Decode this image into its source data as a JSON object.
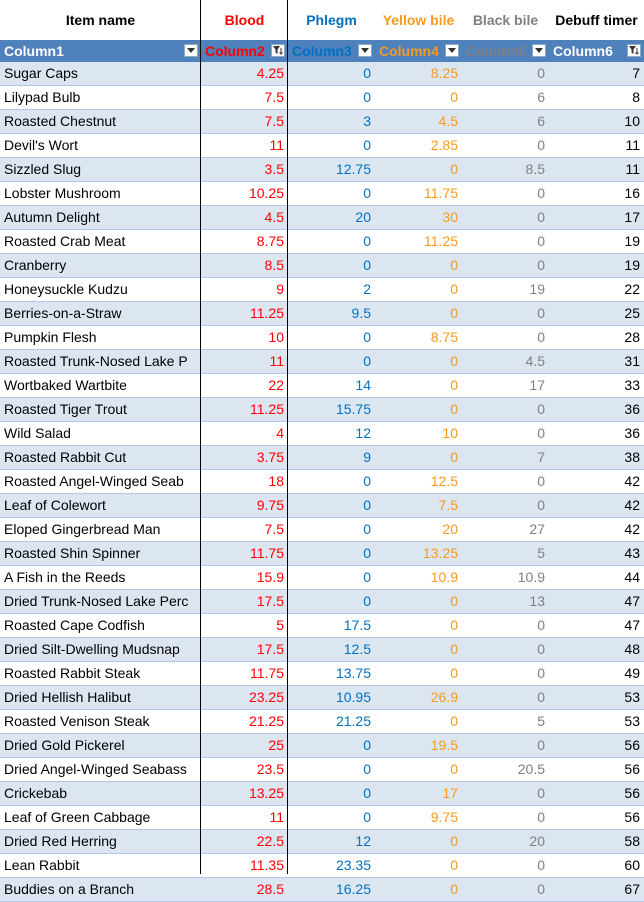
{
  "titles": {
    "item_name": "Item name",
    "blood": "Blood",
    "phlegm": "Phlegm",
    "yellow_bile": "Yellow bile",
    "black_bile": "Black bile",
    "debuff_timer": "Debuff timer"
  },
  "headers": {
    "col1": "Column1",
    "col2": "Column2",
    "col3": "Column3",
    "col4": "Column4",
    "col5": "Column5",
    "col6": "Column6"
  },
  "colors": {
    "blood": "#ff0000",
    "phlegm": "#0070c0",
    "yellow_bile": "#f79a1e",
    "black_bile": "#808080",
    "header_bg": "#4f81bd",
    "band": "#dce6f1"
  },
  "icons": {
    "filter": "filter-dropdown-icon",
    "sorted_filter": "sort-filter-icon"
  },
  "rows": [
    {
      "name": "Sugar Caps",
      "blood": "4.25",
      "phlegm": "0",
      "yellow": "8.25",
      "black": "0",
      "timer": "7"
    },
    {
      "name": "Lilypad Bulb",
      "blood": "7.5",
      "phlegm": "0",
      "yellow": "0",
      "black": "6",
      "timer": "8"
    },
    {
      "name": "Roasted Chestnut",
      "blood": "7.5",
      "phlegm": "3",
      "yellow": "4.5",
      "black": "6",
      "timer": "10"
    },
    {
      "name": "Devil's Wort",
      "blood": "11",
      "phlegm": "0",
      "yellow": "2.85",
      "black": "0",
      "timer": "11"
    },
    {
      "name": "Sizzled Slug",
      "blood": "3.5",
      "phlegm": "12.75",
      "yellow": "0",
      "black": "8.5",
      "timer": "11"
    },
    {
      "name": "Lobster Mushroom",
      "blood": "10.25",
      "phlegm": "0",
      "yellow": "11.75",
      "black": "0",
      "timer": "16"
    },
    {
      "name": "Autumn Delight",
      "blood": "4.5",
      "phlegm": "20",
      "yellow": "30",
      "black": "0",
      "timer": "17"
    },
    {
      "name": "Roasted Crab Meat",
      "blood": "8.75",
      "phlegm": "0",
      "yellow": "11.25",
      "black": "0",
      "timer": "19"
    },
    {
      "name": "Cranberry",
      "blood": "8.5",
      "phlegm": "0",
      "yellow": "0",
      "black": "0",
      "timer": "19"
    },
    {
      "name": "Honeysuckle Kudzu",
      "blood": "9",
      "phlegm": "2",
      "yellow": "0",
      "black": "19",
      "timer": "22"
    },
    {
      "name": "Berries-on-a-Straw",
      "blood": "11.25",
      "phlegm": "9.5",
      "yellow": "0",
      "black": "0",
      "timer": "25"
    },
    {
      "name": "Pumpkin Flesh",
      "blood": "10",
      "phlegm": "0",
      "yellow": "8.75",
      "black": "0",
      "timer": "28"
    },
    {
      "name": "Roasted Trunk-Nosed Lake P",
      "blood": "11",
      "phlegm": "0",
      "yellow": "0",
      "black": "4.5",
      "timer": "31"
    },
    {
      "name": "Wortbaked Wartbite",
      "blood": "22",
      "phlegm": "14",
      "yellow": "0",
      "black": "17",
      "timer": "33"
    },
    {
      "name": "Roasted Tiger Trout",
      "blood": "11.25",
      "phlegm": "15.75",
      "yellow": "0",
      "black": "0",
      "timer": "36"
    },
    {
      "name": "Wild Salad",
      "blood": "4",
      "phlegm": "12",
      "yellow": "10",
      "black": "0",
      "timer": "36"
    },
    {
      "name": "Roasted Rabbit Cut",
      "blood": "3.75",
      "phlegm": "9",
      "yellow": "0",
      "black": "7",
      "timer": "38"
    },
    {
      "name": "Roasted Angel-Winged Seab",
      "blood": "18",
      "phlegm": "0",
      "yellow": "12.5",
      "black": "0",
      "timer": "42"
    },
    {
      "name": "Leaf of Colewort",
      "blood": "9.75",
      "phlegm": "0",
      "yellow": "7.5",
      "black": "0",
      "timer": "42"
    },
    {
      "name": "Eloped Gingerbread Man",
      "blood": "7.5",
      "phlegm": "0",
      "yellow": "20",
      "black": "27",
      "timer": "42"
    },
    {
      "name": "Roasted Shin Spinner",
      "blood": "11.75",
      "phlegm": "0",
      "yellow": "13.25",
      "black": "5",
      "timer": "43"
    },
    {
      "name": "A Fish in the Reeds",
      "blood": "15.9",
      "phlegm": "0",
      "yellow": "10.9",
      "black": "10.9",
      "timer": "44"
    },
    {
      "name": "Dried Trunk-Nosed Lake Perc",
      "blood": "17.5",
      "phlegm": "0",
      "yellow": "0",
      "black": "13",
      "timer": "47"
    },
    {
      "name": "Roasted Cape Codfish",
      "blood": "5",
      "phlegm": "17.5",
      "yellow": "0",
      "black": "0",
      "timer": "47"
    },
    {
      "name": "Dried Silt-Dwelling Mudsnap",
      "blood": "17.5",
      "phlegm": "12.5",
      "yellow": "0",
      "black": "0",
      "timer": "48"
    },
    {
      "name": "Roasted Rabbit Steak",
      "blood": "11.75",
      "phlegm": "13.75",
      "yellow": "0",
      "black": "0",
      "timer": "49"
    },
    {
      "name": "Dried Hellish Halibut",
      "blood": "23.25",
      "phlegm": "10.95",
      "yellow": "26.9",
      "black": "0",
      "timer": "53"
    },
    {
      "name": "Roasted Venison Steak",
      "blood": "21.25",
      "phlegm": "21.25",
      "yellow": "0",
      "black": "5",
      "timer": "53"
    },
    {
      "name": "Dried Gold Pickerel",
      "blood": "25",
      "phlegm": "0",
      "yellow": "19.5",
      "black": "0",
      "timer": "56"
    },
    {
      "name": "Dried Angel-Winged Seabass",
      "blood": "23.5",
      "phlegm": "0",
      "yellow": "0",
      "black": "20.5",
      "timer": "56"
    },
    {
      "name": "Crickebab",
      "blood": "13.25",
      "phlegm": "0",
      "yellow": "17",
      "black": "0",
      "timer": "56"
    },
    {
      "name": "Leaf of Green Cabbage",
      "blood": "11",
      "phlegm": "0",
      "yellow": "9.75",
      "black": "0",
      "timer": "56"
    },
    {
      "name": "Dried Red Herring",
      "blood": "22.5",
      "phlegm": "12",
      "yellow": "0",
      "black": "20",
      "timer": "58"
    },
    {
      "name": "Lean Rabbit",
      "blood": "11.35",
      "phlegm": "23.35",
      "yellow": "0",
      "black": "0",
      "timer": "60"
    },
    {
      "name": "Buddies on a Branch",
      "blood": "28.5",
      "phlegm": "16.25",
      "yellow": "0",
      "black": "0",
      "timer": "67"
    }
  ]
}
